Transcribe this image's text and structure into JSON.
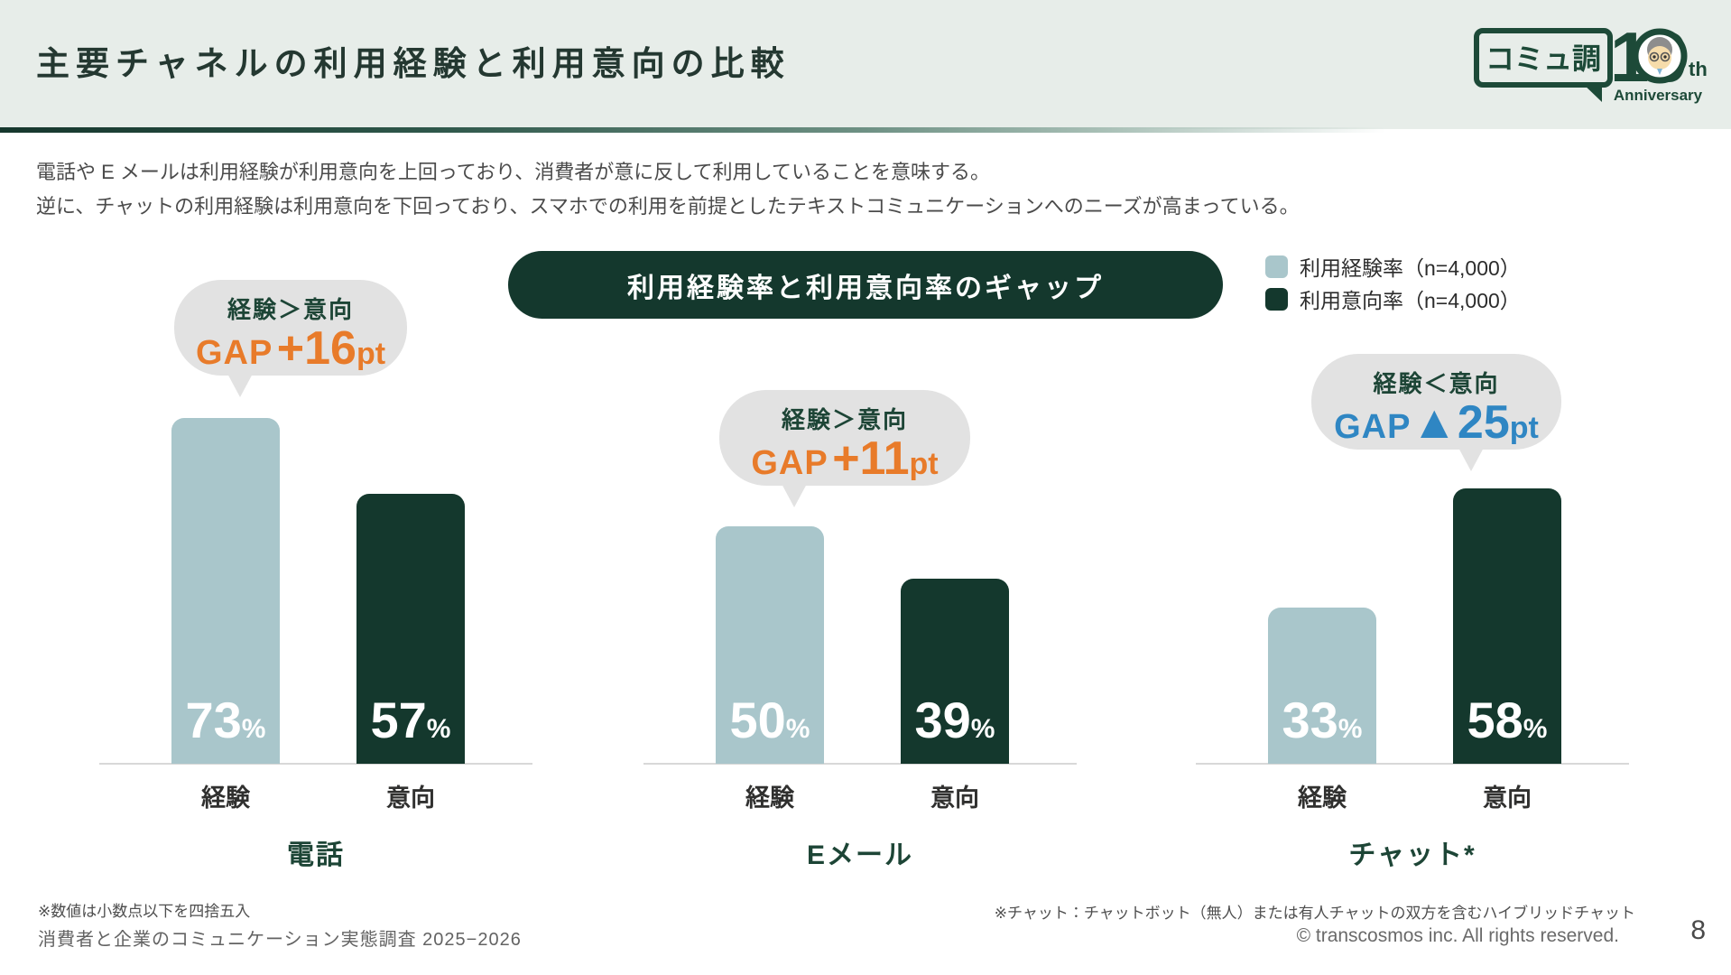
{
  "header": {
    "title": "主要チャネルの利用経験と利用意向の比較",
    "logo": {
      "name": "コミュ調",
      "number": "10",
      "suffix": "th",
      "anniversary": "Anniversary"
    }
  },
  "intro": {
    "line1": "電話や E メールは利用経験が利用意向を上回っており、消費者が意に反して利用していることを意味する。",
    "line2": "逆に、チャットの利用経験は利用意向を下回っており、スマホでの利用を前提としたテキストコミュニケーションへのニーズが高まっている。"
  },
  "banner": {
    "label": "利用経験率と利用意向率のギャップ"
  },
  "legend": {
    "items": [
      {
        "label": "利用経験率（n=4,000）",
        "color": "#a9c6cb"
      },
      {
        "label": "利用意向率（n=4,000）",
        "color": "#14382d"
      }
    ]
  },
  "chart_data": {
    "type": "bar",
    "title": "利用経験率と利用意向率のギャップ",
    "categories": [
      "電話",
      "Eメール",
      "チャット*"
    ],
    "series": [
      {
        "name": "利用経験率（n=4,000）",
        "color": "#a9c6cb",
        "values": [
          73,
          50,
          33
        ]
      },
      {
        "name": "利用意向率（n=4,000）",
        "color": "#14382d",
        "values": [
          57,
          39,
          58
        ]
      }
    ],
    "unit": "%",
    "ylim": [
      0,
      80
    ],
    "grid": false,
    "legend_position": "top-right",
    "bar_axis_labels": [
      "経験",
      "意向"
    ],
    "annotations": [
      {
        "group": "電話",
        "comparison": "経験＞意向",
        "gap": "GAP +16pt",
        "gap_pt": 16,
        "color": "#e87b2a"
      },
      {
        "group": "Eメール",
        "comparison": "経験＞意向",
        "gap": "GAP +11pt",
        "gap_pt": 11,
        "color": "#e87b2a"
      },
      {
        "group": "チャット*",
        "comparison": "経験＜意向",
        "gap": "GAP▲25pt",
        "gap_pt": -25,
        "color": "#2f86c3"
      }
    ]
  },
  "groups": [
    {
      "name": "電話",
      "bubble": {
        "comparison": "経験＞意向",
        "gap_label": "GAP",
        "gap_value": "+16",
        "gap_unit": "pt",
        "gap_color": "#e87b2a"
      },
      "bars": [
        {
          "label": "経験",
          "value": 73,
          "display": "73",
          "unit": "%"
        },
        {
          "label": "意向",
          "value": 57,
          "display": "57",
          "unit": "%"
        }
      ]
    },
    {
      "name": "Eメール",
      "bubble": {
        "comparison": "経験＞意向",
        "gap_label": "GAP",
        "gap_value": "+11",
        "gap_unit": "pt",
        "gap_color": "#e87b2a"
      },
      "bars": [
        {
          "label": "経験",
          "value": 50,
          "display": "50",
          "unit": "%"
        },
        {
          "label": "意向",
          "value": 39,
          "display": "39",
          "unit": "%"
        }
      ]
    },
    {
      "name": "チャット*",
      "bubble": {
        "comparison": "経験＜意向",
        "gap_label": "GAP",
        "gap_value": "▲25",
        "gap_unit": "pt",
        "gap_color": "#2f86c3"
      },
      "bars": [
        {
          "label": "経験",
          "value": 33,
          "display": "33",
          "unit": "%"
        },
        {
          "label": "意向",
          "value": 58,
          "display": "58",
          "unit": "%"
        }
      ]
    }
  ],
  "footnotes": {
    "left": "※数値は小数点以下を四捨五入",
    "source": "消費者と企業のコミュニケーション実態調査 2025−2026",
    "right": "※チャット：チャットボット（無人）または有人チャットの双方を含むハイブリッドチャット",
    "copyright": "© transcosmos inc. All rights reserved.",
    "page": "8"
  }
}
